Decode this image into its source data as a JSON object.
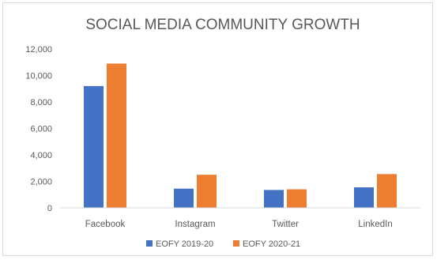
{
  "chart_data": {
    "type": "bar",
    "title": "SOCIAL MEDIA COMMUNITY GROWTH",
    "xlabel": "",
    "ylabel": "",
    "categories": [
      "Facebook",
      "Instagram",
      "Twitter",
      "LinkedIn"
    ],
    "series": [
      {
        "name": "EOFY 2019-20",
        "color": "#4472c4",
        "values": [
          9200,
          1450,
          1350,
          1550
        ]
      },
      {
        "name": "EOFY 2020-21",
        "color": "#ed7d31",
        "values": [
          10900,
          2500,
          1400,
          2550
        ]
      }
    ],
    "ylim": [
      0,
      12000
    ],
    "yticks": [
      0,
      2000,
      4000,
      6000,
      8000,
      10000,
      12000
    ],
    "ytick_labels": [
      "0",
      "2,000",
      "4,000",
      "6,000",
      "8,000",
      "10,000",
      "12,000"
    ],
    "grid": false,
    "legend_position": "bottom"
  }
}
